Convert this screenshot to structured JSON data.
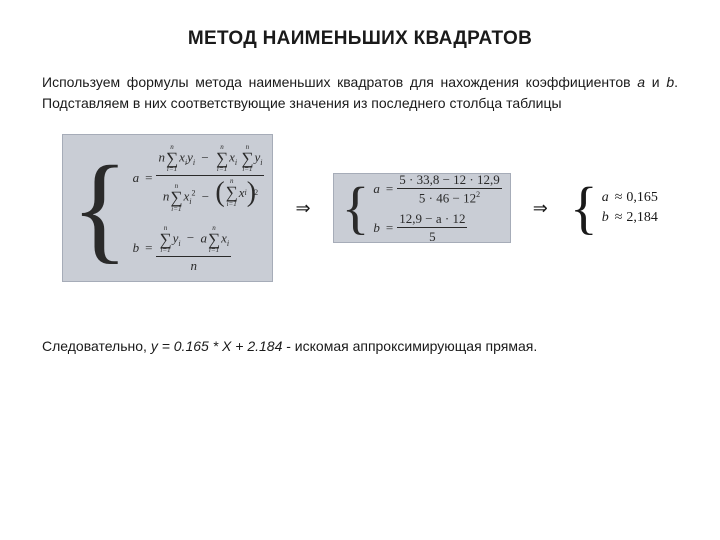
{
  "title": "МЕТОД НАИМЕНЬШИХ КВАДРАТОВ",
  "intro": {
    "p1": "Используем формулы метода наименьших квадратов для нахождения коэффициентов ",
    "a": "a",
    "and": " и ",
    "b": "b",
    "p2": ". Подставляем в них соответствующие значения из последнего столбца таблицы"
  },
  "formula": {
    "symbolic": {
      "a": "a",
      "b": "b",
      "eq": "=",
      "n": "n",
      "minus": "−",
      "sum_upper": "n",
      "sum_lower": "i=1",
      "sigma": "∑",
      "xi": "x",
      "yi": "y",
      "xiyi": "x",
      "sq": "2",
      "lp": "(",
      "rp": ")",
      "i": "i"
    },
    "numeric": {
      "a_num": "5 · 33,8 − 12 · 12,9",
      "a_den": "5 · 46 − 12",
      "a_den_sq": "2",
      "b_num": "12,9 − a · 12",
      "b_den": "5",
      "a": "a",
      "b": "b",
      "eq": "="
    },
    "result": {
      "a_lhs": "a",
      "a_rhs": "0,165",
      "b_lhs": "b",
      "b_rhs": "2,184",
      "approx": "≈"
    },
    "arrow": "⇒"
  },
  "conclusion": {
    "p1": "Следовательно, ",
    "eqn": "y = 0.165 * X + 2.184",
    "p2": " - искомая аппроксимирующая прямая."
  }
}
